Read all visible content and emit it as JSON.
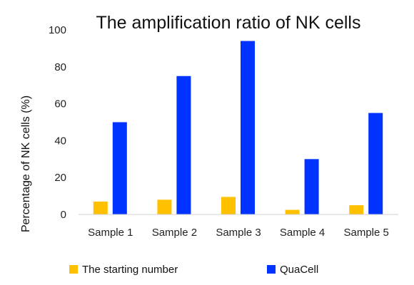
{
  "chart_data": {
    "type": "bar",
    "title": "The amplification ratio of NK cells",
    "xlabel": "",
    "ylabel": "Percentage of NK cells (%)",
    "categories": [
      "Sample 1",
      "Sample 2",
      "Sample 3",
      "Sample 4",
      "Sample 5"
    ],
    "ylim": [
      0,
      100
    ],
    "yticks": [
      0,
      20,
      40,
      60,
      80,
      100
    ],
    "grid": false,
    "legend_position": "bottom",
    "series": [
      {
        "name": "The starting number",
        "color": "#FFC000",
        "values": [
          7,
          8,
          9.5,
          2.5,
          5
        ]
      },
      {
        "name": "QuaCell",
        "color": "#0033FF",
        "values": [
          50,
          75,
          94,
          30,
          55
        ]
      }
    ]
  }
}
